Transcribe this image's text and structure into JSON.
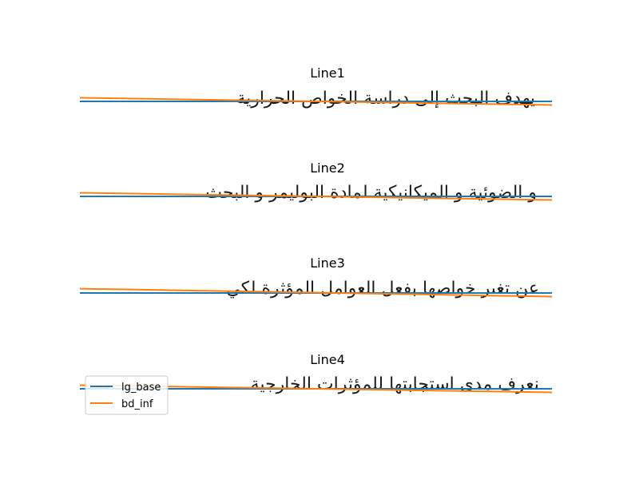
{
  "chart_data": [
    {
      "type": "line",
      "title": "Line1",
      "text": "يهدف البحث إلى دراسة الخواص الحرارية",
      "x": [
        0,
        1
      ],
      "series": [
        {
          "name": "lg_base",
          "color": "#1f77b4",
          "values": [
            0.0,
            0.0
          ]
        },
        {
          "name": "bd_inf",
          "color": "#ff7f0e",
          "values": [
            0.75,
            -0.75
          ]
        }
      ],
      "ylim": [
        -6,
        6
      ]
    },
    {
      "type": "line",
      "title": "Line2",
      "text": "و الضوئية و الميكانيكية لمادة البوليمر و البحث",
      "x": [
        0,
        1
      ],
      "series": [
        {
          "name": "lg_base",
          "color": "#1f77b4",
          "values": [
            0.0,
            0.0
          ]
        },
        {
          "name": "bd_inf",
          "color": "#ff7f0e",
          "values": [
            0.75,
            -0.75
          ]
        }
      ],
      "ylim": [
        -6,
        6
      ]
    },
    {
      "type": "line",
      "title": "Line3",
      "text": "عن تغير خواصها بفعل العوامل المؤثرة لكي",
      "x": [
        0,
        1
      ],
      "series": [
        {
          "name": "lg_base",
          "color": "#1f77b4",
          "values": [
            0.0,
            0.0
          ]
        },
        {
          "name": "bd_inf",
          "color": "#ff7f0e",
          "values": [
            0.9,
            -0.75
          ]
        }
      ],
      "ylim": [
        -6,
        6
      ]
    },
    {
      "type": "line",
      "title": "Line4",
      "text": "نعرف مدى استجابتها للمؤثرات الخارجية",
      "x": [
        0,
        1
      ],
      "series": [
        {
          "name": "lg_base",
          "color": "#1f77b4",
          "values": [
            0.0,
            0.0
          ]
        },
        {
          "name": "bd_inf",
          "color": "#ff7f0e",
          "values": [
            0.75,
            -0.75
          ]
        }
      ],
      "ylim": [
        -6,
        6
      ],
      "legend": {
        "placement": "lower-left",
        "entries": [
          "lg_base",
          "bd_inf"
        ]
      }
    }
  ]
}
